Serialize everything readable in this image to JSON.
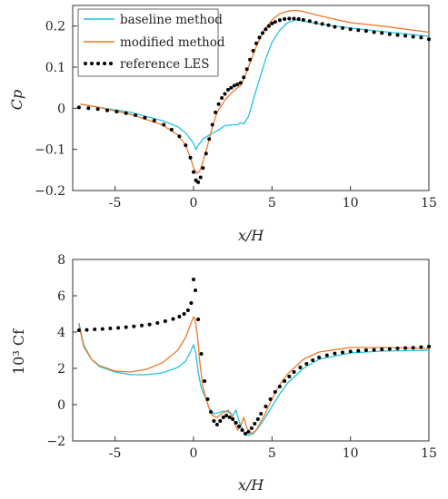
{
  "colors": {
    "baseline": "#1fc3dc",
    "modified": "#ec7a2c",
    "reference": "#000000",
    "axis": "#333333"
  },
  "legend": {
    "baseline": "baseline method",
    "modified": "modified method",
    "reference": "reference LES"
  },
  "chart_data": [
    {
      "type": "line",
      "xlabel": "x/H",
      "ylabel": "Cp",
      "xlim": [
        -7.7,
        15
      ],
      "ylim": [
        -0.2,
        0.25
      ],
      "xticks": [
        -5,
        0,
        5,
        10,
        15
      ],
      "yticks": [
        -0.2,
        -0.1,
        0,
        0.1,
        0.2
      ],
      "ytick_labels": [
        "−0.2",
        "−0.1",
        "0",
        "0.1",
        "0.2"
      ],
      "xtick_labels": [
        "-5",
        "0",
        "5",
        "10",
        "15"
      ],
      "legend": "top-left",
      "grid": false,
      "series": [
        {
          "name": "baseline method",
          "style": "line",
          "x": [
            -7.2,
            -6,
            -4,
            -2,
            -1,
            -0.5,
            0,
            0.15,
            0.3,
            0.6,
            1,
            1.5,
            2,
            2.5,
            2.8,
            3,
            3.2,
            3.5,
            3.8,
            4.2,
            4.6,
            5,
            5.5,
            6,
            6.5,
            7,
            8,
            10,
            12,
            15
          ],
          "y": [
            0.01,
            0.002,
            -0.01,
            -0.03,
            -0.045,
            -0.06,
            -0.085,
            -0.1,
            -0.09,
            -0.075,
            -0.065,
            -0.055,
            -0.042,
            -0.04,
            -0.04,
            -0.035,
            -0.038,
            -0.02,
            0.02,
            0.07,
            0.12,
            0.16,
            0.19,
            0.208,
            0.215,
            0.212,
            0.205,
            0.195,
            0.187,
            0.175
          ]
        },
        {
          "name": "modified method",
          "style": "line",
          "x": [
            -7.2,
            -6,
            -4,
            -2,
            -1,
            -0.5,
            -0.2,
            0,
            0.2,
            0.4,
            0.6,
            0.9,
            1.2,
            1.5,
            2,
            2.5,
            2.8,
            3,
            3.2,
            3.5,
            4,
            4.5,
            5,
            5.5,
            6,
            6.5,
            7,
            8,
            10,
            12,
            15
          ],
          "y": [
            0.01,
            0.002,
            -0.015,
            -0.04,
            -0.065,
            -0.09,
            -0.12,
            -0.145,
            -0.158,
            -0.152,
            -0.13,
            -0.09,
            -0.045,
            -0.01,
            0.02,
            0.04,
            0.05,
            0.055,
            0.07,
            0.1,
            0.15,
            0.19,
            0.215,
            0.23,
            0.236,
            0.238,
            0.235,
            0.225,
            0.208,
            0.2,
            0.185
          ]
        },
        {
          "name": "reference LES",
          "style": "markers",
          "x": [
            -7.3,
            -6.7,
            -6.1,
            -5.5,
            -4.9,
            -4.3,
            -3.7,
            -3.1,
            -2.5,
            -1.9,
            -1.4,
            -0.9,
            -0.5,
            -0.2,
            0,
            0.15,
            0.3,
            0.45,
            0.6,
            0.8,
            1,
            1.2,
            1.4,
            1.6,
            1.8,
            2,
            2.2,
            2.4,
            2.6,
            2.8,
            3,
            3.2,
            3.4,
            3.6,
            3.8,
            4,
            4.2,
            4.4,
            4.6,
            4.8,
            5,
            5.2,
            5.5,
            5.8,
            6.1,
            6.4,
            6.7,
            7,
            7.4,
            7.8,
            8.2,
            8.6,
            9,
            9.5,
            10,
            10.5,
            11,
            11.5,
            12,
            12.5,
            13,
            13.5,
            14,
            14.5,
            15
          ],
          "y": [
            0.002,
            0,
            -0.002,
            -0.005,
            -0.008,
            -0.012,
            -0.017,
            -0.023,
            -0.03,
            -0.04,
            -0.052,
            -0.068,
            -0.09,
            -0.12,
            -0.155,
            -0.175,
            -0.18,
            -0.168,
            -0.145,
            -0.11,
            -0.075,
            -0.04,
            -0.01,
            0.01,
            0.025,
            0.035,
            0.045,
            0.05,
            0.055,
            0.058,
            0.062,
            0.075,
            0.095,
            0.118,
            0.14,
            0.158,
            0.172,
            0.183,
            0.192,
            0.2,
            0.206,
            0.21,
            0.214,
            0.217,
            0.218,
            0.218,
            0.217,
            0.215,
            0.212,
            0.208,
            0.205,
            0.202,
            0.198,
            0.195,
            0.192,
            0.19,
            0.188,
            0.185,
            0.183,
            0.18,
            0.178,
            0.176,
            0.174,
            0.172,
            0.168
          ]
        }
      ]
    },
    {
      "type": "line",
      "xlabel": "x/H",
      "ylabel": "10³ Cf",
      "xlim": [
        -7.7,
        15
      ],
      "ylim": [
        -2,
        8
      ],
      "xticks": [
        -5,
        0,
        5,
        10,
        15
      ],
      "yticks": [
        -2,
        0,
        2,
        4,
        6,
        8
      ],
      "ytick_labels": [
        "−2",
        "0",
        "2",
        "4",
        "6",
        "8"
      ],
      "xtick_labels": [
        "-5",
        "0",
        "5",
        "10",
        "15"
      ],
      "grid": false,
      "series": [
        {
          "name": "baseline method",
          "style": "line",
          "x": [
            -7.3,
            -7,
            -6.5,
            -6,
            -5,
            -4,
            -3,
            -2,
            -1,
            -0.5,
            -0.2,
            0,
            0.15,
            0.3,
            0.5,
            0.8,
            1,
            1.3,
            1.6,
            1.9,
            2.2,
            2.5,
            2.7,
            2.9,
            3.1,
            3.3,
            3.5,
            3.8,
            4.1,
            4.5,
            5,
            5.5,
            6,
            7,
            8,
            10,
            12,
            15
          ],
          "y": [
            4.5,
            3.3,
            2.5,
            2.1,
            1.8,
            1.65,
            1.65,
            1.75,
            2.05,
            2.4,
            2.9,
            3.3,
            2.8,
            1.8,
            0.9,
            0.3,
            -0.2,
            -0.5,
            -0.45,
            -0.35,
            -0.4,
            -0.6,
            -0.3,
            -0.9,
            -1.3,
            -1.65,
            -1.7,
            -1.6,
            -1.3,
            -0.8,
            -0.1,
            0.6,
            1.2,
            2.0,
            2.5,
            2.85,
            2.95,
            3.0
          ]
        },
        {
          "name": "modified method",
          "style": "line",
          "x": [
            -7.3,
            -7,
            -6.5,
            -6,
            -5,
            -4,
            -3,
            -2,
            -1,
            -0.5,
            -0.2,
            0,
            0.1,
            0.25,
            0.4,
            0.6,
            0.8,
            1,
            1.2,
            1.5,
            1.8,
            2,
            2.2,
            2.4,
            2.6,
            2.8,
            3,
            3.2,
            3.4,
            3.7,
            4,
            4.5,
            5,
            5.5,
            6,
            7,
            8,
            10,
            12,
            15
          ],
          "y": [
            4.4,
            3.2,
            2.5,
            2.15,
            1.85,
            1.8,
            1.95,
            2.3,
            3.0,
            3.7,
            4.4,
            4.85,
            4.7,
            3.8,
            2.3,
            1.0,
            0.3,
            -0.2,
            -0.6,
            -0.7,
            -0.5,
            -0.4,
            -0.3,
            -0.5,
            -1.0,
            -1.4,
            -1.2,
            -0.7,
            -1.3,
            -1.6,
            -1.4,
            -0.6,
            0.3,
            1.1,
            1.7,
            2.5,
            2.9,
            3.15,
            3.15,
            3.1
          ]
        },
        {
          "name": "reference LES",
          "style": "markers",
          "x": [
            -7.3,
            -6.8,
            -6.3,
            -5.8,
            -5.3,
            -4.8,
            -4.3,
            -3.8,
            -3.3,
            -2.8,
            -2.3,
            -1.8,
            -1.3,
            -0.9,
            -0.6,
            -0.35,
            -0.15,
            0,
            0.12,
            0.3,
            0.5,
            0.7,
            0.9,
            1.1,
            1.3,
            1.5,
            1.7,
            1.9,
            2.1,
            2.3,
            2.5,
            2.7,
            2.9,
            3.1,
            3.3,
            3.5,
            3.7,
            3.9,
            4.1,
            4.3,
            4.6,
            4.9,
            5.2,
            5.5,
            5.8,
            6.1,
            6.4,
            6.8,
            7.2,
            7.6,
            8,
            8.5,
            9,
            9.5,
            10,
            10.5,
            11,
            11.5,
            12,
            12.5,
            13,
            13.5,
            14,
            14.5,
            15
          ],
          "y": [
            4.1,
            4.12,
            4.15,
            4.17,
            4.2,
            4.23,
            4.27,
            4.31,
            4.36,
            4.42,
            4.5,
            4.6,
            4.72,
            4.85,
            5.0,
            5.2,
            5.6,
            6.9,
            6.3,
            4.7,
            2.8,
            1.3,
            0.3,
            -0.4,
            -0.9,
            -1.1,
            -0.9,
            -0.7,
            -0.6,
            -0.7,
            -0.8,
            -1.0,
            -1.2,
            -1.4,
            -1.6,
            -1.5,
            -1.3,
            -1.05,
            -0.8,
            -0.5,
            -0.1,
            0.3,
            0.7,
            1.0,
            1.3,
            1.55,
            1.8,
            2.05,
            2.25,
            2.45,
            2.6,
            2.72,
            2.82,
            2.88,
            2.93,
            2.97,
            3.0,
            3.02,
            3.05,
            3.07,
            3.1,
            3.12,
            3.14,
            3.17,
            3.2
          ]
        }
      ]
    }
  ]
}
